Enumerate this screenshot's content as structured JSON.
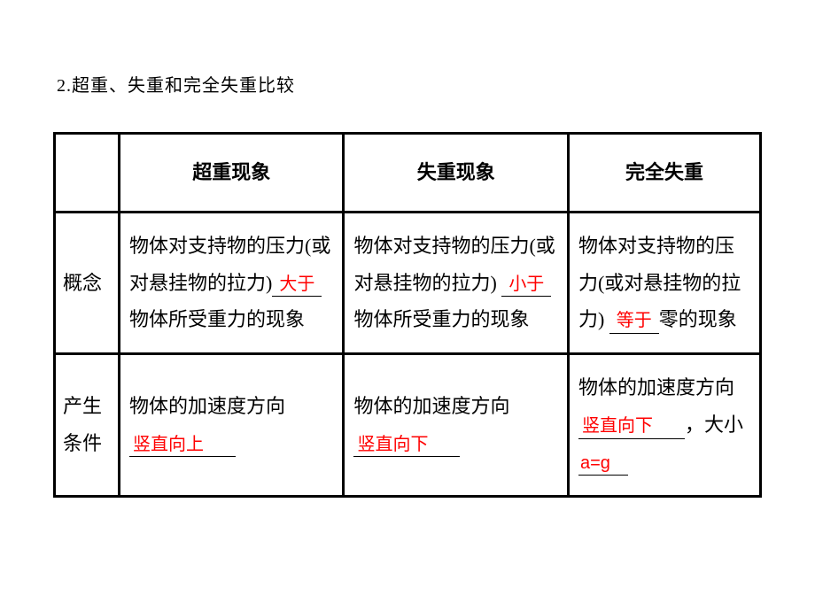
{
  "heading": "2.超重、失重和完全失重比较",
  "table": {
    "headers": {
      "blank": "",
      "col1": "超重现象",
      "col2": "失重现象",
      "col3": "完全失重"
    },
    "rows": {
      "concept": {
        "label": "概念",
        "col1": {
          "pre": "物体对支持物的压力(或对悬挂物的拉力)",
          "fill": "大于",
          "post": "物体所受重力的现象"
        },
        "col2": {
          "pre": "物体对支持物的压力(或对悬挂物的拉力)",
          "fill": "小于",
          "post": "物体所受重力的现象"
        },
        "col3": {
          "pre": "物体对支持物的压力(或对悬挂物的拉力)",
          "fill": "等于",
          "post": "零的现象"
        }
      },
      "condition": {
        "label": "产生条件",
        "col1": {
          "pre": "物体的加速度方向",
          "fill": "竖直向上"
        },
        "col2": {
          "pre": "物体的加速度方向",
          "fill": "竖直向下"
        },
        "col3": {
          "pre1": "物体的加速度方向",
          "fill1": "竖直向下",
          "mid": "，大小",
          "fill2": "a=g"
        }
      }
    }
  },
  "colors": {
    "text": "#000000",
    "highlight": "#ff0000",
    "border": "#000000",
    "background": "#ffffff"
  },
  "typography": {
    "heading_fontsize": 20,
    "cell_fontsize": 22,
    "highlight_fontsize": 20
  }
}
